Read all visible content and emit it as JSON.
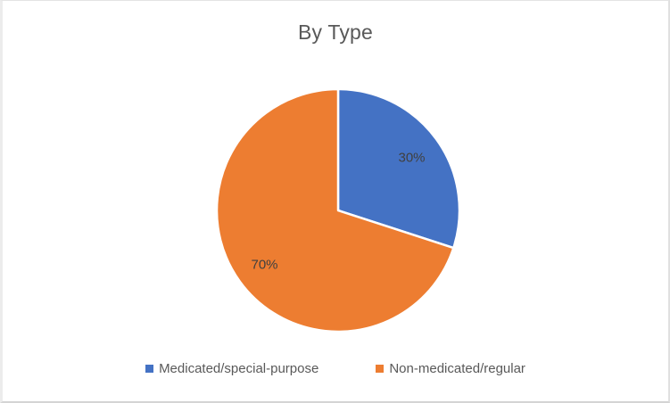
{
  "frame": {
    "background": "#ffffff",
    "border_color": "#e0e0e0"
  },
  "chart_data": {
    "type": "pie",
    "title": "By Type",
    "categories": [
      "Medicated/special-purpose",
      "Non-medicated/regular"
    ],
    "values": [
      30,
      70
    ],
    "data_labels": [
      "30%",
      "70%"
    ],
    "colors": [
      "#4472C4",
      "#ED7D31"
    ],
    "start_angle_deg": 0,
    "direction": "clockwise",
    "slice_border_color": "#ffffff",
    "legend_position": "bottom",
    "title_color": "#595959",
    "legend_text_color": "#595959",
    "data_label_color": "#404040"
  }
}
